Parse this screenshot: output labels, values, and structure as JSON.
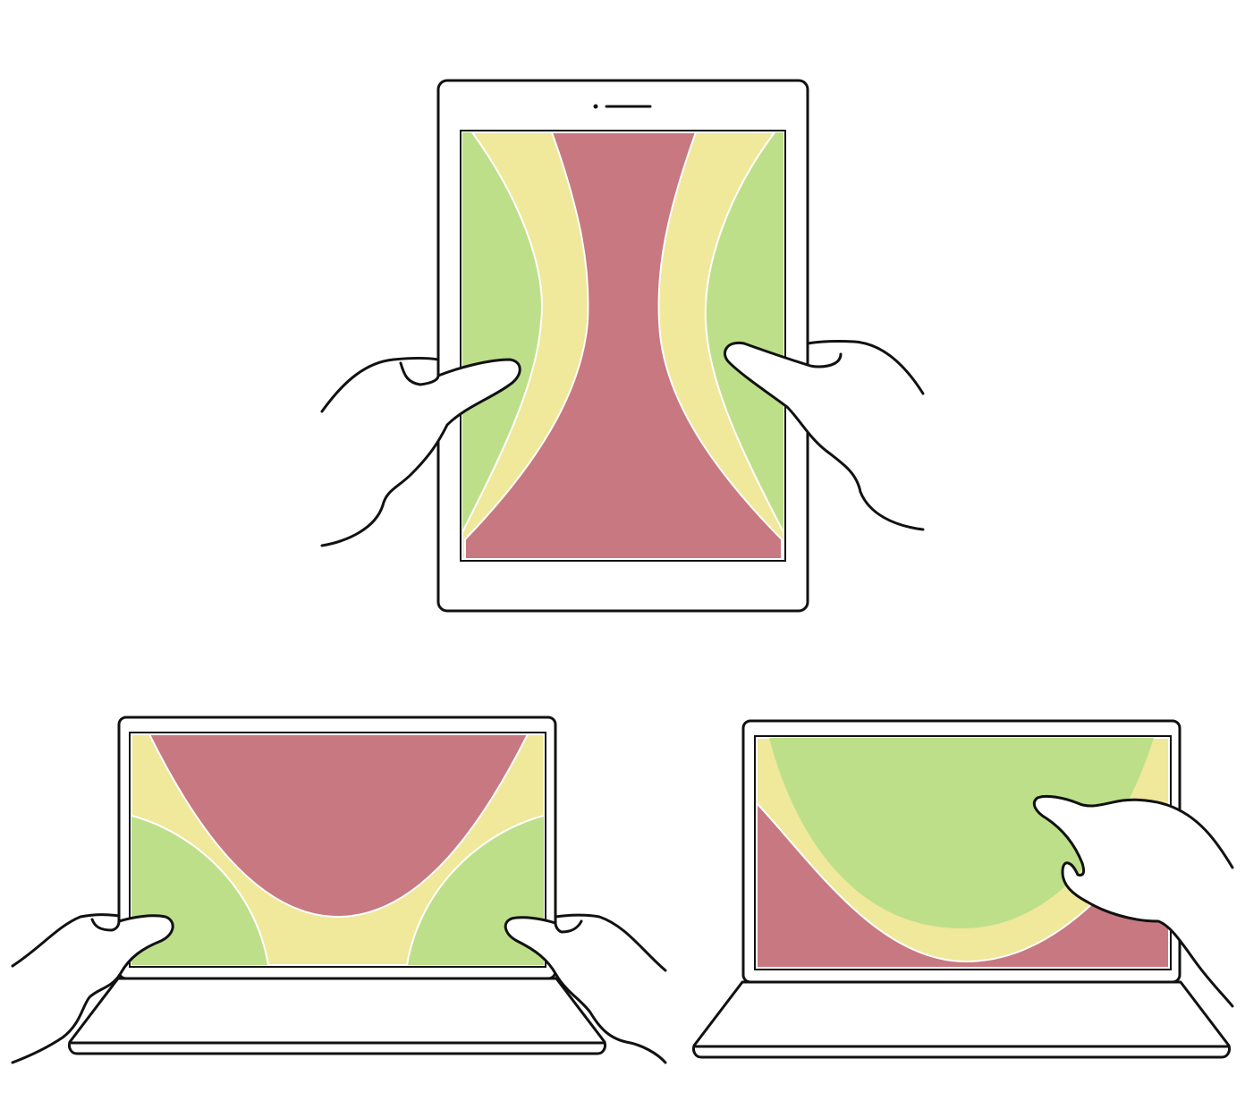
{
  "figure": {
    "zone_colors": {
      "hard_to_reach": "#c87880",
      "stretch": "#f0e89a",
      "easy_reach": "#bddf8a"
    },
    "panels": [
      {
        "device": "tablet",
        "grip": "two-thumbs-portrait"
      },
      {
        "device": "laptop-touchscreen",
        "grip": "two-thumbs-landscape"
      },
      {
        "device": "laptop-touchscreen",
        "grip": "one-hand-pointing"
      }
    ]
  }
}
